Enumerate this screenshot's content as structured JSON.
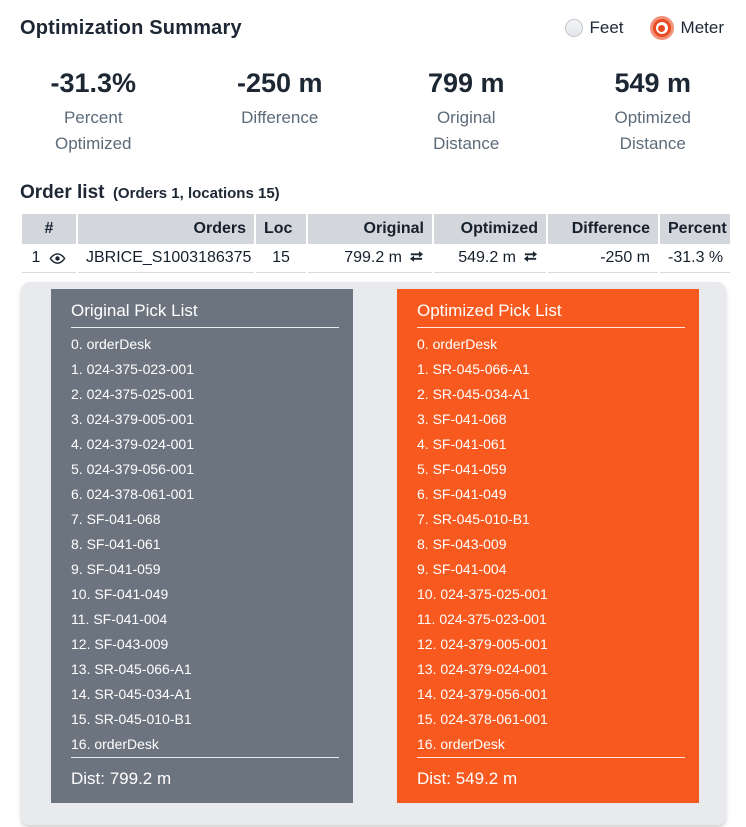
{
  "header": {
    "title": "Optimization Summary",
    "unit_options": [
      {
        "label": "Feet",
        "selected": false
      },
      {
        "label": "Meter",
        "selected": true
      }
    ]
  },
  "stats": [
    {
      "value": "-31.3%",
      "label": "Percent Optimized"
    },
    {
      "value": "-250 m",
      "label": "Difference"
    },
    {
      "value": "799 m",
      "label": "Original Distance"
    },
    {
      "value": "549 m",
      "label": "Optimized Distance"
    }
  ],
  "order_list": {
    "title": "Order list",
    "subtitle": "(Orders 1, locations 15)",
    "columns": {
      "num": "#",
      "orders": "Orders",
      "loc": "Loc",
      "original": "Original",
      "optimized": "Optimized",
      "difference": "Difference",
      "percent": "Percent"
    },
    "row": {
      "num": "1",
      "orders": "JBRICE_S1003186375",
      "loc": "15",
      "original": "799.2 m",
      "optimized": "549.2 m",
      "difference": "-250 m",
      "percent": "-31.3 %"
    }
  },
  "pick_lists": [
    {
      "title": "Original Pick List",
      "dist": "Dist: 799.2 m",
      "items": [
        "0. orderDesk",
        "1. 024-375-023-001",
        "2. 024-375-025-001",
        "3. 024-379-005-001",
        "4. 024-379-024-001",
        "5. 024-379-056-001",
        "6. 024-378-061-001",
        "7. SF-041-068",
        "8. SF-041-061",
        "9. SF-041-059",
        "10. SF-041-049",
        "11. SF-041-004",
        "12. SF-043-009",
        "13. SR-045-066-A1",
        "14. SR-045-034-A1",
        "15. SR-045-010-B1",
        "16. orderDesk"
      ]
    },
    {
      "title": "Optimized Pick List",
      "dist": "Dist: 549.2 m",
      "items": [
        "0. orderDesk",
        "1. SR-045-066-A1",
        "2. SR-045-034-A1",
        "3. SF-041-068",
        "4. SF-041-061",
        "5. SF-041-059",
        "6. SF-041-049",
        "7. SR-045-010-B1",
        "8. SF-043-009",
        "9. SF-041-004",
        "10. 024-375-025-001",
        "11. 024-375-023-001",
        "12. 024-379-005-001",
        "13. 024-379-024-001",
        "14. 024-379-056-001",
        "15. 024-378-061-001",
        "16. orderDesk"
      ]
    }
  ],
  "icons": {
    "row_visibility": "eye-icon",
    "route_direction": "swap-arrows-icon",
    "unit_radio": "radio-button"
  },
  "colors": {
    "accent_orange": "#f8591f",
    "slate_gray": "#6c7480",
    "card_background": "#e8eaed",
    "table_header_bg": "#d3d6db",
    "dark_text": "#1d2733",
    "stat_label_text": "#5c6b7a",
    "radio_selected": "#e84b22"
  }
}
